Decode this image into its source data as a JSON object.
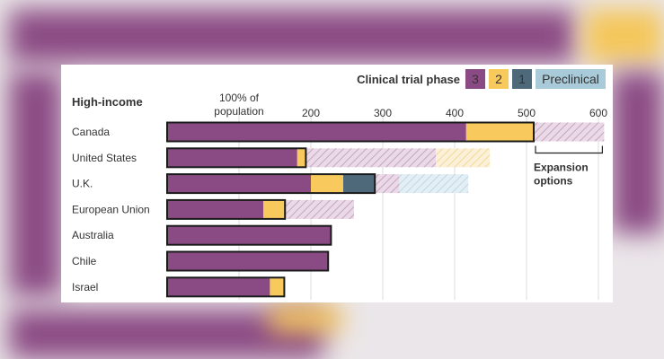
{
  "colors": {
    "phase3": "#8a4a84",
    "phase2": "#f8c95d",
    "phase1": "#4e6a7a",
    "preclinical": "#a9cad8",
    "border": "#1b1b1b",
    "grid": "#dddddd",
    "text": "#333333",
    "background_blur_purple": "#8b4b84",
    "background_blur_yellow": "#f4c65a"
  },
  "chart_data": {
    "type": "bar",
    "orientation": "horizontal",
    "stacked": true,
    "units": "% of population covered by vaccine doses",
    "group_label": "High-income",
    "legend": {
      "title": "Clinical trial phase",
      "items": [
        {
          "key": "phase3",
          "label": "3"
        },
        {
          "key": "phase2",
          "label": "2"
        },
        {
          "key": "phase1",
          "label": "1"
        },
        {
          "key": "preclinical",
          "label": "Preclinical"
        }
      ]
    },
    "x_axis": {
      "range": [
        0,
        610
      ],
      "ticks": [
        {
          "value": 100,
          "label": "100% of",
          "label2": "population"
        },
        {
          "value": 200,
          "label": "200"
        },
        {
          "value": 300,
          "label": "300"
        },
        {
          "value": 400,
          "label": "400"
        },
        {
          "value": 500,
          "label": "500"
        },
        {
          "value": 600,
          "label": "600"
        }
      ],
      "gridlines": true
    },
    "categories": [
      "Canada",
      "United States",
      "U.K.",
      "European Union",
      "Australia",
      "Chile",
      "Israel"
    ],
    "series": [
      {
        "name": "3",
        "key": "phase3",
        "values": [
          416,
          181,
          200,
          134,
          228,
          224,
          143
        ]
      },
      {
        "name": "2",
        "key": "phase2",
        "values": [
          94,
          12,
          45,
          30,
          0,
          0,
          20
        ]
      },
      {
        "name": "1",
        "key": "phase1",
        "values": [
          0,
          0,
          44,
          0,
          0,
          0,
          0
        ]
      },
      {
        "name": "Preclinical",
        "key": "preclinical",
        "values": [
          0,
          0,
          0,
          0,
          0,
          0,
          0
        ]
      }
    ],
    "expansion_options": [
      {
        "category": "Canada",
        "segments": [
          {
            "key": "phase3",
            "value": 98
          }
        ]
      },
      {
        "category": "United States",
        "segments": [
          {
            "key": "phase3",
            "value": 181
          },
          {
            "key": "phase2",
            "value": 75
          }
        ]
      },
      {
        "category": "U.K.",
        "segments": [
          {
            "key": "phase3",
            "value": 34
          },
          {
            "key": "preclinical",
            "value": 96
          }
        ]
      },
      {
        "category": "European Union",
        "segments": [
          {
            "key": "phase3",
            "value": 96
          }
        ]
      }
    ],
    "annotation": {
      "text_line1": "Expansion",
      "text_line2": "options",
      "category": "Canada"
    }
  }
}
